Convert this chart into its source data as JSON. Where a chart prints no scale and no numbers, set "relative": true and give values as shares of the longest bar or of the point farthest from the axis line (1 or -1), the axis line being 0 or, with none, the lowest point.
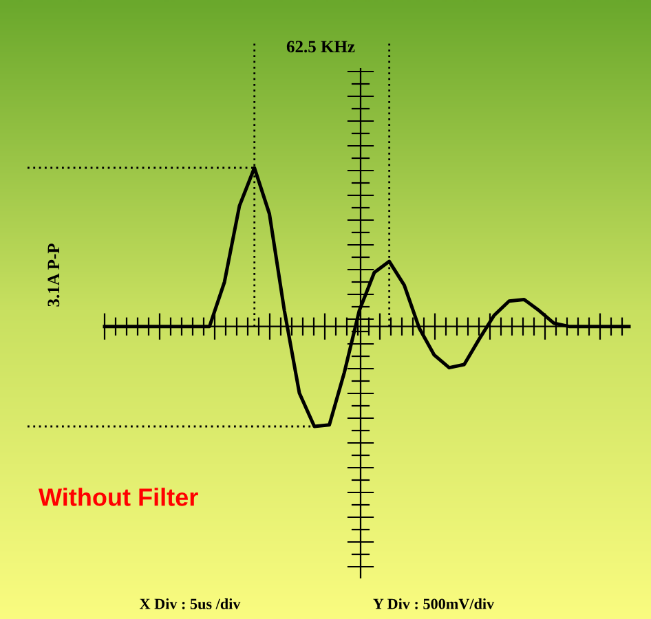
{
  "chart_data": {
    "type": "line",
    "relative": true,
    "categories": [
      null,
      null,
      null,
      null,
      null,
      null,
      null,
      null,
      null,
      null,
      null,
      null,
      null,
      null,
      null,
      null,
      null,
      null,
      null,
      null,
      null,
      null,
      null,
      null,
      null,
      null,
      null,
      null,
      null,
      null,
      null,
      null,
      null,
      null,
      null,
      null
    ],
    "series": [
      {
        "color": "#000000",
        "values": [
          0,
          0,
          0,
          0,
          0,
          0,
          0,
          0,
          0.28,
          0.76,
          1,
          0.71,
          0.1,
          -0.42,
          -0.63,
          -0.62,
          -0.29,
          0.1,
          0.34,
          0.41,
          0.26,
          -0.01,
          -0.18,
          -0.26,
          -0.24,
          -0.08,
          0.07,
          0.16,
          0.17,
          0.1,
          0.02,
          0,
          0,
          0,
          0,
          0
        ]
      }
    ],
    "ref_lines": [
      {
        "axis": "y",
        "value": 1,
        "line_style": "dotted",
        "color": "#000000"
      },
      {
        "axis": "y",
        "value": -0.63,
        "line_style": "dotted",
        "color": "#000000"
      }
    ],
    "annotations": [
      "62.5 KHz",
      "3.1A P-P",
      "Without Filter",
      "X Div : 5us /div",
      "Y Div : 500mV/div"
    ]
  }
}
